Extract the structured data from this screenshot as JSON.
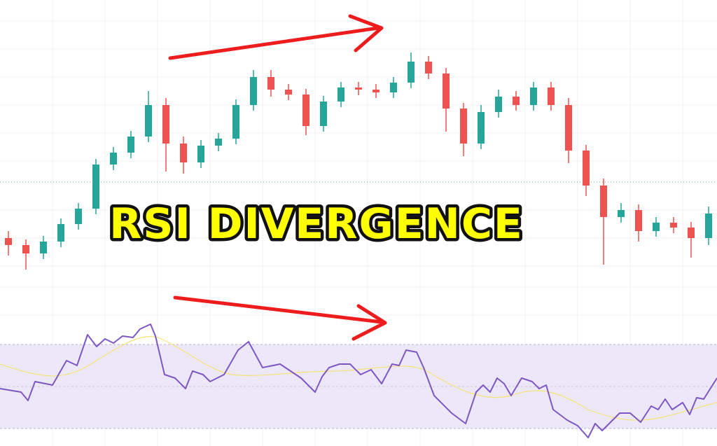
{
  "title": "RSI DIVERGENCE"
}
